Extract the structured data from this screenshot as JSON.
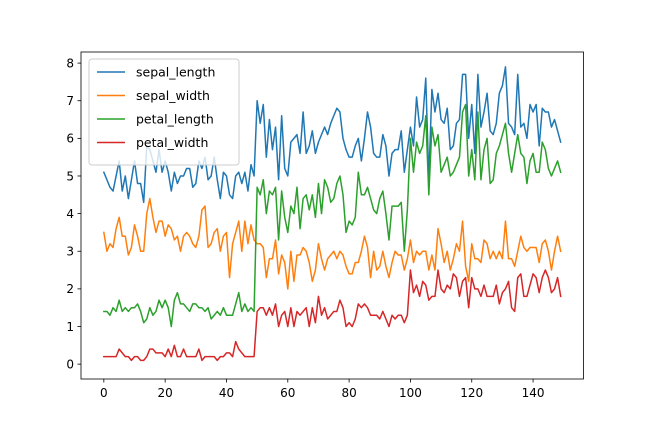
{
  "chart_data": {
    "type": "line",
    "title": "",
    "xlabel": "",
    "ylabel": "",
    "xlim": [
      -7.45,
      156.45
    ],
    "ylim": [
      -0.395,
      8.295
    ],
    "xticks": [
      0,
      20,
      40,
      60,
      80,
      100,
      120,
      140
    ],
    "yticks": [
      0,
      1,
      2,
      3,
      4,
      5,
      6,
      7,
      8
    ],
    "grid": false,
    "legend_position": "top-left",
    "series": [
      {
        "name": "sepal_length",
        "color": "#1f77b4",
        "values": [
          5.1,
          4.9,
          4.7,
          4.6,
          5.0,
          5.4,
          4.6,
          5.0,
          4.4,
          4.9,
          5.4,
          4.8,
          4.8,
          4.3,
          5.8,
          5.7,
          5.4,
          5.1,
          5.7,
          5.1,
          5.4,
          5.1,
          4.6,
          5.1,
          4.8,
          5.0,
          5.0,
          5.2,
          5.2,
          4.7,
          4.8,
          5.4,
          5.2,
          5.5,
          4.9,
          5.0,
          5.5,
          4.9,
          4.4,
          5.1,
          5.0,
          4.5,
          4.4,
          5.0,
          5.1,
          4.8,
          5.1,
          4.6,
          5.3,
          5.0,
          7.0,
          6.4,
          6.9,
          5.5,
          6.5,
          5.7,
          6.3,
          4.9,
          6.6,
          5.2,
          5.0,
          5.9,
          6.0,
          6.1,
          5.6,
          6.7,
          5.6,
          5.8,
          6.2,
          5.6,
          5.9,
          6.1,
          6.3,
          6.1,
          6.4,
          6.6,
          6.8,
          6.7,
          6.0,
          5.7,
          5.5,
          5.5,
          5.8,
          6.0,
          5.4,
          6.0,
          6.7,
          6.3,
          5.6,
          5.5,
          5.5,
          6.1,
          5.8,
          5.0,
          5.6,
          5.7,
          5.7,
          6.2,
          5.1,
          5.7,
          6.3,
          5.8,
          7.1,
          6.3,
          6.5,
          7.6,
          4.9,
          7.3,
          6.7,
          7.2,
          6.5,
          6.4,
          6.8,
          5.7,
          5.8,
          6.4,
          6.5,
          7.7,
          7.7,
          6.0,
          6.9,
          5.6,
          7.7,
          6.3,
          6.7,
          7.2,
          6.2,
          6.1,
          6.4,
          7.2,
          7.4,
          7.9,
          6.4,
          6.3,
          6.1,
          7.7,
          6.3,
          6.4,
          6.0,
          6.9,
          6.7,
          6.9,
          5.8,
          6.8,
          6.7,
          6.7,
          6.3,
          6.5,
          6.2,
          5.9
        ]
      },
      {
        "name": "sepal_width",
        "color": "#ff7f0e",
        "values": [
          3.5,
          3.0,
          3.2,
          3.1,
          3.6,
          3.9,
          3.4,
          3.4,
          2.9,
          3.1,
          3.7,
          3.4,
          3.0,
          3.0,
          4.0,
          4.4,
          3.9,
          3.5,
          3.8,
          3.8,
          3.4,
          3.7,
          3.6,
          3.3,
          3.4,
          3.0,
          3.4,
          3.5,
          3.4,
          3.2,
          3.1,
          3.4,
          4.1,
          4.2,
          3.1,
          3.2,
          3.5,
          3.6,
          3.0,
          3.4,
          3.5,
          2.3,
          3.2,
          3.5,
          3.8,
          3.0,
          3.8,
          3.2,
          3.7,
          3.3,
          3.2,
          3.2,
          3.1,
          2.3,
          2.8,
          2.8,
          3.3,
          2.4,
          2.9,
          2.7,
          2.0,
          3.0,
          2.2,
          2.9,
          2.9,
          3.1,
          3.0,
          2.7,
          2.2,
          2.5,
          3.2,
          2.8,
          2.5,
          2.8,
          2.9,
          3.0,
          2.8,
          3.0,
          2.9,
          2.6,
          2.4,
          2.4,
          2.7,
          2.7,
          3.0,
          3.4,
          3.1,
          2.3,
          3.0,
          2.5,
          2.6,
          3.0,
          2.6,
          2.3,
          2.7,
          3.0,
          2.9,
          2.9,
          2.5,
          2.8,
          3.3,
          2.7,
          3.0,
          2.9,
          3.0,
          3.0,
          2.5,
          2.9,
          2.5,
          3.6,
          3.2,
          2.7,
          3.0,
          2.5,
          2.8,
          3.2,
          3.0,
          3.8,
          2.6,
          2.2,
          3.2,
          2.8,
          2.8,
          2.7,
          3.3,
          3.2,
          2.8,
          3.0,
          2.8,
          3.0,
          2.8,
          3.8,
          2.8,
          2.8,
          2.6,
          3.0,
          3.4,
          3.1,
          3.0,
          3.1,
          3.1,
          3.1,
          2.7,
          3.2,
          3.3,
          3.0,
          2.5,
          3.0,
          3.4,
          3.0
        ]
      },
      {
        "name": "petal_length",
        "color": "#2ca02c",
        "values": [
          1.4,
          1.4,
          1.3,
          1.5,
          1.4,
          1.7,
          1.4,
          1.5,
          1.4,
          1.5,
          1.5,
          1.6,
          1.4,
          1.1,
          1.2,
          1.5,
          1.3,
          1.4,
          1.7,
          1.5,
          1.7,
          1.5,
          1.0,
          1.7,
          1.9,
          1.6,
          1.6,
          1.5,
          1.4,
          1.6,
          1.6,
          1.5,
          1.5,
          1.4,
          1.5,
          1.2,
          1.3,
          1.4,
          1.3,
          1.5,
          1.3,
          1.3,
          1.3,
          1.6,
          1.9,
          1.4,
          1.6,
          1.4,
          1.5,
          1.4,
          4.7,
          4.5,
          4.9,
          4.0,
          4.6,
          4.5,
          4.7,
          3.3,
          4.6,
          3.9,
          3.5,
          4.2,
          4.0,
          4.7,
          3.6,
          4.4,
          4.5,
          4.1,
          4.5,
          3.9,
          4.8,
          4.0,
          4.9,
          4.7,
          4.3,
          4.4,
          4.8,
          5.0,
          4.5,
          3.5,
          3.8,
          3.7,
          3.9,
          5.1,
          4.5,
          4.5,
          4.7,
          4.4,
          4.1,
          4.0,
          4.4,
          4.6,
          4.0,
          3.3,
          4.2,
          4.2,
          4.2,
          4.3,
          3.0,
          4.1,
          6.0,
          5.1,
          5.9,
          5.6,
          5.8,
          6.6,
          4.5,
          6.3,
          5.8,
          6.1,
          5.1,
          5.3,
          5.5,
          5.0,
          5.1,
          5.3,
          5.5,
          6.7,
          6.9,
          5.0,
          5.7,
          4.9,
          6.7,
          4.9,
          5.7,
          6.0,
          4.8,
          4.9,
          5.6,
          5.8,
          6.1,
          6.4,
          5.6,
          5.1,
          5.6,
          6.1,
          5.6,
          5.5,
          4.8,
          5.4,
          5.6,
          5.1,
          5.1,
          5.9,
          5.7,
          5.2,
          5.0,
          5.2,
          5.4,
          5.1
        ]
      },
      {
        "name": "petal_width",
        "color": "#d62728",
        "values": [
          0.2,
          0.2,
          0.2,
          0.2,
          0.2,
          0.4,
          0.3,
          0.2,
          0.2,
          0.1,
          0.2,
          0.2,
          0.1,
          0.1,
          0.2,
          0.4,
          0.4,
          0.3,
          0.3,
          0.3,
          0.2,
          0.4,
          0.2,
          0.5,
          0.2,
          0.2,
          0.4,
          0.2,
          0.2,
          0.2,
          0.2,
          0.4,
          0.1,
          0.2,
          0.2,
          0.2,
          0.2,
          0.1,
          0.2,
          0.2,
          0.3,
          0.3,
          0.2,
          0.6,
          0.4,
          0.3,
          0.2,
          0.2,
          0.2,
          0.2,
          1.4,
          1.5,
          1.5,
          1.3,
          1.5,
          1.3,
          1.6,
          1.0,
          1.3,
          1.4,
          1.0,
          1.5,
          1.0,
          1.4,
          1.3,
          1.4,
          1.5,
          1.0,
          1.5,
          1.1,
          1.8,
          1.3,
          1.5,
          1.2,
          1.3,
          1.4,
          1.4,
          1.7,
          1.5,
          1.0,
          1.1,
          1.0,
          1.2,
          1.6,
          1.5,
          1.6,
          1.5,
          1.3,
          1.3,
          1.3,
          1.2,
          1.4,
          1.2,
          1.0,
          1.3,
          1.2,
          1.3,
          1.3,
          1.1,
          1.3,
          2.5,
          1.9,
          2.1,
          1.8,
          2.2,
          2.1,
          1.7,
          1.8,
          1.8,
          2.5,
          2.0,
          1.9,
          2.1,
          2.0,
          2.4,
          2.3,
          1.8,
          2.2,
          2.3,
          1.5,
          2.3,
          2.0,
          2.0,
          1.8,
          2.1,
          1.8,
          1.8,
          1.8,
          2.1,
          1.6,
          1.9,
          2.0,
          2.2,
          1.5,
          1.4,
          2.3,
          2.4,
          1.8,
          1.8,
          2.1,
          2.4,
          2.3,
          1.9,
          2.3,
          2.5,
          2.3,
          1.9,
          2.0,
          2.3,
          1.8
        ]
      }
    ]
  }
}
